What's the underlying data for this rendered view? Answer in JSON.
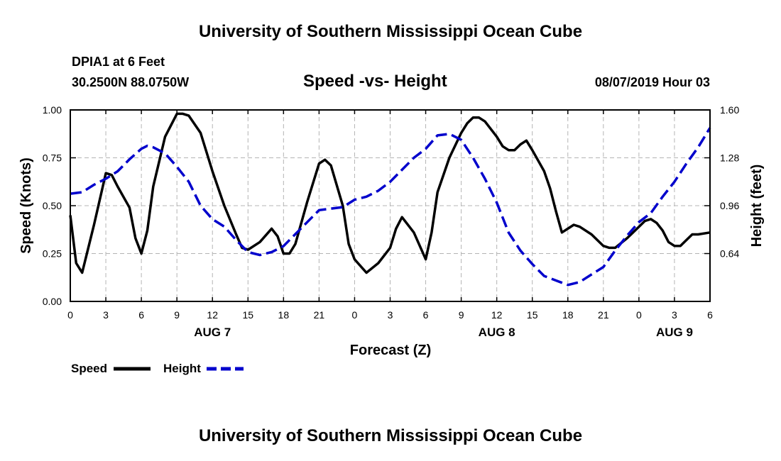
{
  "page": {
    "title_top": "University of Southern Mississippi Ocean Cube",
    "title_bottom": "University of Southern Mississippi Ocean Cube",
    "station": "DPIA1 at 6 Feet",
    "location": "30.2500N 88.0750W",
    "datetime": "08/07/2019 Hour 03"
  },
  "colors": {
    "speed": "#000000",
    "height": "#0000cc",
    "grid": "#b4b4b4"
  },
  "chart_data": {
    "type": "line",
    "title": "Speed -vs- Height",
    "xlabel": "Forecast (Z)",
    "ylabel": "Speed (Knots)",
    "y2label": "Height (feet)",
    "x_range": [
      0,
      54
    ],
    "x_tick_positions": [
      0,
      3,
      6,
      9,
      12,
      15,
      18,
      21,
      24,
      27,
      30,
      33,
      36,
      39,
      42,
      45,
      48,
      51,
      54
    ],
    "x_tick_labels": [
      "0",
      "3",
      "6",
      "9",
      "12",
      "15",
      "18",
      "21",
      "0",
      "3",
      "6",
      "9",
      "12",
      "15",
      "18",
      "21",
      "0",
      "3",
      "6"
    ],
    "day_labels": [
      {
        "x": 12,
        "label": "AUG 7"
      },
      {
        "x": 36,
        "label": "AUG 8"
      },
      {
        "x": 51,
        "label": "AUG 9"
      }
    ],
    "y_left": {
      "range": [
        0,
        1
      ],
      "ticks": [
        0,
        0.25,
        0.5,
        0.75,
        1.0
      ],
      "tick_labels": [
        "0.00",
        "0.25",
        "0.50",
        "0.75",
        "1.00"
      ]
    },
    "y_right": {
      "range": [
        0.32,
        1.6
      ],
      "ticks": [
        0.64,
        0.96,
        1.28,
        1.6
      ],
      "tick_labels": [
        "0.64",
        "0.96",
        "1.28",
        "1.60"
      ]
    },
    "grid": true,
    "series": [
      {
        "name": "Speed",
        "axis": "left",
        "style": "solid",
        "points": [
          [
            0,
            0.45
          ],
          [
            0.5,
            0.2
          ],
          [
            1,
            0.15
          ],
          [
            2,
            0.4
          ],
          [
            3,
            0.67
          ],
          [
            3.5,
            0.66
          ],
          [
            4,
            0.6
          ],
          [
            5,
            0.49
          ],
          [
            5.5,
            0.33
          ],
          [
            6,
            0.25
          ],
          [
            6.5,
            0.37
          ],
          [
            7,
            0.6
          ],
          [
            8,
            0.86
          ],
          [
            9,
            0.98
          ],
          [
            9.5,
            0.98
          ],
          [
            10,
            0.97
          ],
          [
            11,
            0.88
          ],
          [
            12,
            0.68
          ],
          [
            13,
            0.5
          ],
          [
            14,
            0.35
          ],
          [
            14.5,
            0.28
          ],
          [
            15,
            0.27
          ],
          [
            16,
            0.31
          ],
          [
            17,
            0.38
          ],
          [
            17.5,
            0.34
          ],
          [
            18,
            0.25
          ],
          [
            18.5,
            0.25
          ],
          [
            19,
            0.3
          ],
          [
            20,
            0.52
          ],
          [
            21,
            0.72
          ],
          [
            21.5,
            0.74
          ],
          [
            22,
            0.71
          ],
          [
            23,
            0.5
          ],
          [
            23.5,
            0.3
          ],
          [
            24,
            0.22
          ],
          [
            25,
            0.15
          ],
          [
            26,
            0.2
          ],
          [
            27,
            0.28
          ],
          [
            27.5,
            0.38
          ],
          [
            28,
            0.44
          ],
          [
            29,
            0.36
          ],
          [
            30,
            0.22
          ],
          [
            30.5,
            0.36
          ],
          [
            31,
            0.57
          ],
          [
            32,
            0.75
          ],
          [
            33,
            0.88
          ],
          [
            33.5,
            0.93
          ],
          [
            34,
            0.96
          ],
          [
            34.5,
            0.96
          ],
          [
            35,
            0.94
          ],
          [
            36,
            0.86
          ],
          [
            36.5,
            0.81
          ],
          [
            37,
            0.79
          ],
          [
            37.5,
            0.79
          ],
          [
            38,
            0.82
          ],
          [
            38.5,
            0.84
          ],
          [
            39,
            0.79
          ],
          [
            40,
            0.68
          ],
          [
            40.5,
            0.59
          ],
          [
            41,
            0.47
          ],
          [
            41.5,
            0.36
          ],
          [
            42,
            0.38
          ],
          [
            42.5,
            0.4
          ],
          [
            43,
            0.39
          ],
          [
            44,
            0.35
          ],
          [
            45,
            0.29
          ],
          [
            45.5,
            0.28
          ],
          [
            46,
            0.28
          ],
          [
            47,
            0.33
          ],
          [
            48,
            0.39
          ],
          [
            48.5,
            0.42
          ],
          [
            49,
            0.43
          ],
          [
            49.5,
            0.41
          ],
          [
            50,
            0.37
          ],
          [
            50.5,
            0.31
          ],
          [
            51,
            0.29
          ],
          [
            51.5,
            0.29
          ],
          [
            52,
            0.32
          ],
          [
            52.5,
            0.35
          ],
          [
            53,
            0.35
          ],
          [
            54,
            0.36
          ]
        ]
      },
      {
        "name": "Height",
        "axis": "right",
        "style": "dashed",
        "points": [
          [
            0,
            1.04
          ],
          [
            1,
            1.05
          ],
          [
            2,
            1.1
          ],
          [
            3,
            1.14
          ],
          [
            4,
            1.19
          ],
          [
            5,
            1.27
          ],
          [
            6,
            1.34
          ],
          [
            6.5,
            1.36
          ],
          [
            7,
            1.35
          ],
          [
            8,
            1.31
          ],
          [
            9,
            1.22
          ],
          [
            10,
            1.12
          ],
          [
            11,
            0.96
          ],
          [
            12,
            0.87
          ],
          [
            13,
            0.82
          ],
          [
            14,
            0.73
          ],
          [
            15,
            0.65
          ],
          [
            16,
            0.63
          ],
          [
            17,
            0.65
          ],
          [
            18,
            0.69
          ],
          [
            19,
            0.77
          ],
          [
            20,
            0.85
          ],
          [
            21,
            0.93
          ],
          [
            22,
            0.94
          ],
          [
            23,
            0.95
          ],
          [
            24,
            1.0
          ],
          [
            25,
            1.02
          ],
          [
            26,
            1.06
          ],
          [
            27,
            1.12
          ],
          [
            28,
            1.2
          ],
          [
            29,
            1.28
          ],
          [
            30,
            1.34
          ],
          [
            31,
            1.43
          ],
          [
            32,
            1.44
          ],
          [
            33,
            1.4
          ],
          [
            34,
            1.28
          ],
          [
            35,
            1.14
          ],
          [
            36,
            0.98
          ],
          [
            37,
            0.78
          ],
          [
            38,
            0.66
          ],
          [
            39,
            0.57
          ],
          [
            40,
            0.49
          ],
          [
            41,
            0.46
          ],
          [
            42,
            0.43
          ],
          [
            43,
            0.45
          ],
          [
            44,
            0.5
          ],
          [
            45,
            0.55
          ],
          [
            46,
            0.66
          ],
          [
            47,
            0.76
          ],
          [
            48,
            0.85
          ],
          [
            49,
            0.91
          ],
          [
            50,
            1.02
          ],
          [
            51,
            1.12
          ],
          [
            52,
            1.24
          ],
          [
            53,
            1.35
          ],
          [
            54,
            1.48
          ]
        ]
      }
    ]
  }
}
